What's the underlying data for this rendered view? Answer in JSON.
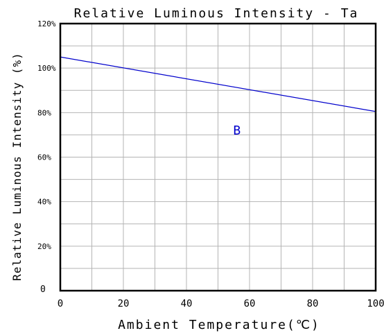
{
  "chart_data": {
    "type": "line",
    "title": "Relative Luminous Intensity - Ta",
    "xlabel": "Ambient Temperature(℃)",
    "ylabel": "Relative Luminous Intensity (%)",
    "xlim": [
      0,
      100
    ],
    "ylim": [
      0,
      120
    ],
    "x_ticks": [
      0,
      20,
      40,
      60,
      80,
      100
    ],
    "x_tick_labels": [
      "0",
      "20",
      "40",
      "60",
      "80",
      "100"
    ],
    "y_ticks": [
      0,
      20,
      40,
      60,
      80,
      100,
      120
    ],
    "y_tick_labels": [
      "0",
      "20%",
      "40%",
      "60%",
      "80%",
      "100%",
      "120%"
    ],
    "grid": true,
    "x_minor_step": 10,
    "y_minor_step": 10,
    "series": [
      {
        "name": "B",
        "color": "#0000cc",
        "x": [
          0,
          100
        ],
        "y": [
          105,
          80.5
        ]
      }
    ],
    "annotations": [
      {
        "text": "B",
        "x": 56,
        "y": 72,
        "color": "#0000cc"
      }
    ]
  }
}
